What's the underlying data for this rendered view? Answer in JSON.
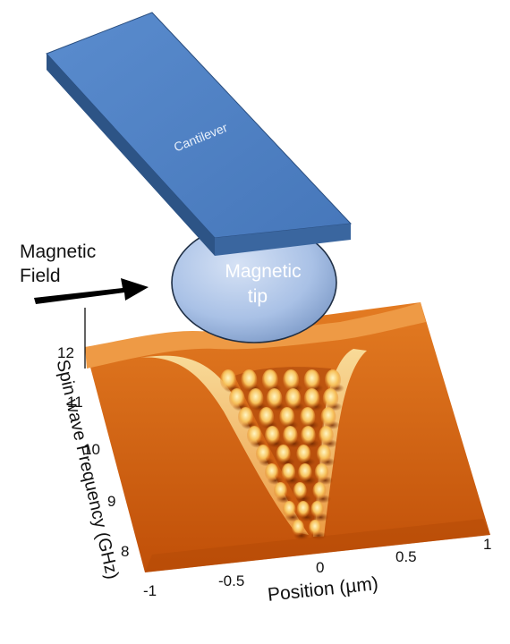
{
  "cantilever": {
    "label": "Cantilever"
  },
  "tip": {
    "label_line1": "Magnetic",
    "label_line2": "tip"
  },
  "field": {
    "label_line1": "Magnetic",
    "label_line2": "Field"
  },
  "colors": {
    "cantilever_top": "#4f82c4",
    "cantilever_side": "#2a4d7c",
    "tip_fill": "#a9c1e6",
    "surface_base": "#c95a0c",
    "surface_peak": "#fff3b0",
    "arrow": "#000000"
  },
  "chart_data": {
    "type": "surface",
    "xlabel": "Position (µm)",
    "ylabel": "Spin wave Frequency (GHz)",
    "x_ticks": [
      "-1",
      "-0.5",
      "0",
      "0.5",
      "1"
    ],
    "y_ticks": [
      "8",
      "9",
      "10",
      "11",
      "12"
    ],
    "xlim": [
      -1,
      1
    ],
    "ylim": [
      7.5,
      12.2
    ],
    "grid": false
  }
}
